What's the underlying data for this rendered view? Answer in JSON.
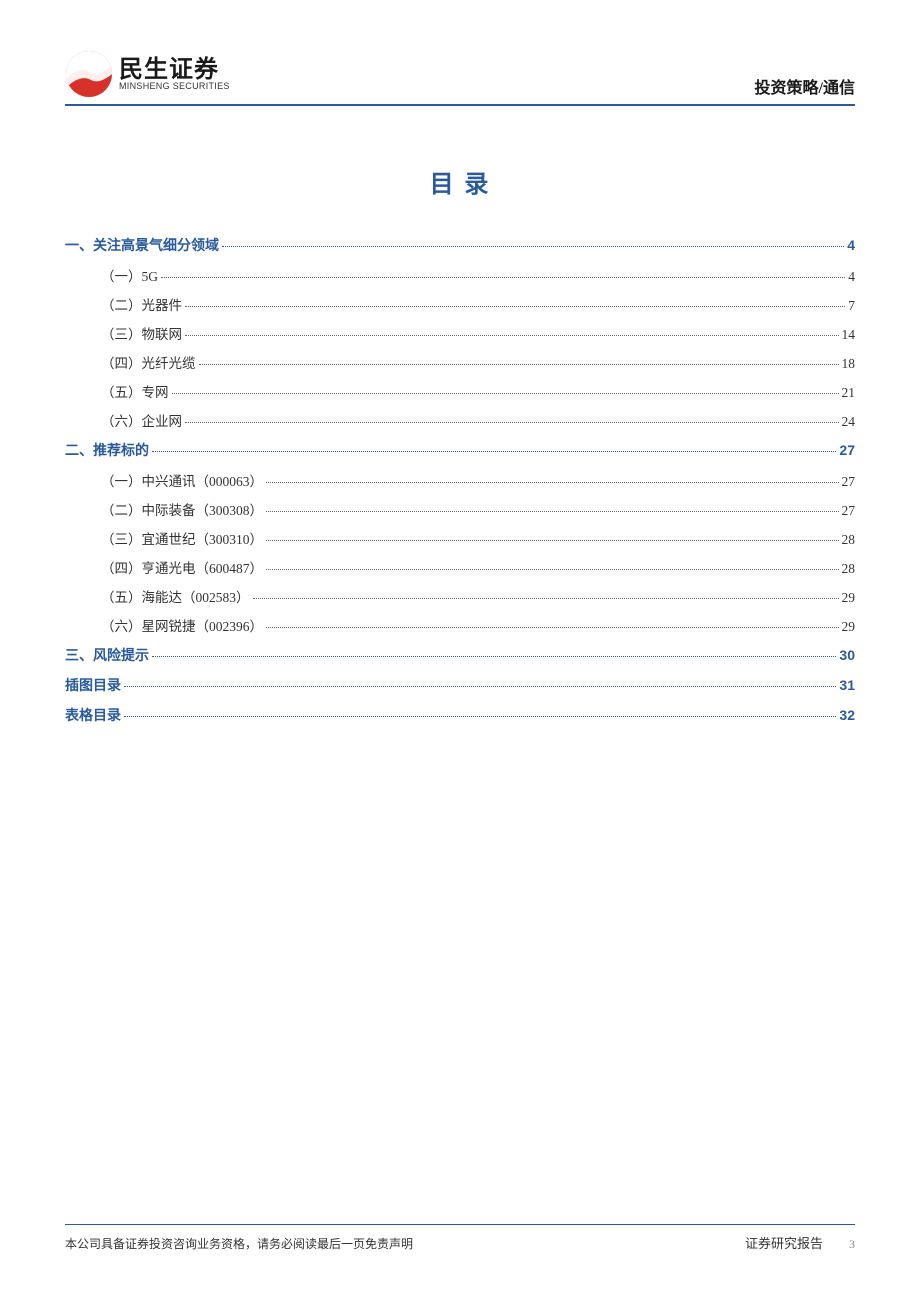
{
  "colors": {
    "brand_blue": "#2a5a9a",
    "brand_red": "#d6322a",
    "text_primary": "#1a1a1a",
    "text_body": "#333333",
    "text_muted": "#888888",
    "background": "#ffffff",
    "leader_l2": "#666666"
  },
  "typography": {
    "title_fontsize": 24,
    "level1_fontsize": 14,
    "level2_fontsize": 13.5,
    "footer_fontsize": 12,
    "logo_main_fontsize": 24,
    "logo_sub_fontsize": 9,
    "header_right_font": "KaiTi",
    "title_font": "SimHei",
    "body_font": "SimSun"
  },
  "header": {
    "logo_main": "民生证券",
    "logo_sub": "MINSHENG SECURITIES",
    "right_text": "投资策略/通信"
  },
  "page_title": "目 录",
  "toc": [
    {
      "level": 1,
      "label": "一、关注高景气细分领域",
      "page": "4"
    },
    {
      "level": 2,
      "label": "（一）5G",
      "page": "4"
    },
    {
      "level": 2,
      "label": "（二）光器件",
      "page": "7"
    },
    {
      "level": 2,
      "label": "（三）物联网",
      "page": "14"
    },
    {
      "level": 2,
      "label": "（四）光纤光缆",
      "page": "18"
    },
    {
      "level": 2,
      "label": "（五）专网",
      "page": "21"
    },
    {
      "level": 2,
      "label": "（六）企业网",
      "page": "24"
    },
    {
      "level": 1,
      "label": "二、推荐标的",
      "page": "27"
    },
    {
      "level": 2,
      "label": "（一）中兴通讯（000063）",
      "page": "27"
    },
    {
      "level": 2,
      "label": "（二）中际装备（300308）",
      "page": "27"
    },
    {
      "level": 2,
      "label": "（三）宜通世纪（300310）",
      "page": "28"
    },
    {
      "level": 2,
      "label": "（四）亨通光电（600487）",
      "page": "28"
    },
    {
      "level": 2,
      "label": "（五）海能达（002583）",
      "page": "29"
    },
    {
      "level": 2,
      "label": "（六）星网锐捷（002396）",
      "page": "29"
    },
    {
      "level": 1,
      "label": "三、风险提示",
      "page": "30"
    },
    {
      "level": 1,
      "label": "插图目录",
      "page": "31"
    },
    {
      "level": 1,
      "label": "表格目录",
      "page": "32"
    }
  ],
  "footer": {
    "left": "本公司具备证券投资咨询业务资格，请务必阅读最后一页免责声明",
    "right_label": "证券研究报告",
    "page_number": "3"
  }
}
